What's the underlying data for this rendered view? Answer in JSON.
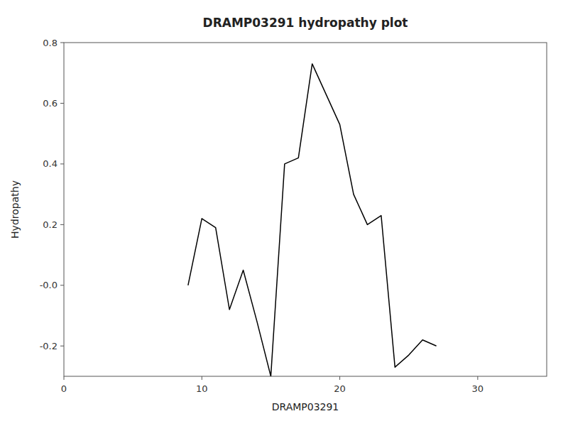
{
  "chart_data": {
    "type": "line",
    "title": "DRAMP03291 hydropathy plot",
    "x_label": "DRAMP03291",
    "y_label": "Hydropathy",
    "x": [
      9,
      10,
      11,
      12,
      13,
      14,
      15,
      16,
      17,
      18,
      19,
      20,
      21,
      22,
      23,
      24,
      25,
      26,
      27
    ],
    "values": [
      0.0,
      0.22,
      0.19,
      -0.08,
      0.05,
      -0.12,
      -0.3,
      0.4,
      0.42,
      0.73,
      0.63,
      0.53,
      0.3,
      0.2,
      0.23,
      -0.27,
      -0.23,
      -0.18,
      -0.2
    ],
    "color": "#000000",
    "xlim": [
      0,
      35
    ],
    "ylim": [
      -0.3,
      0.8
    ],
    "xticks": [
      0,
      10,
      20,
      30
    ],
    "yticks": [
      -0.2,
      {
        "value": 0.0,
        "label": "-0.0"
      },
      0.2,
      0.4,
      0.6,
      0.8
    ],
    "grid": false
  }
}
